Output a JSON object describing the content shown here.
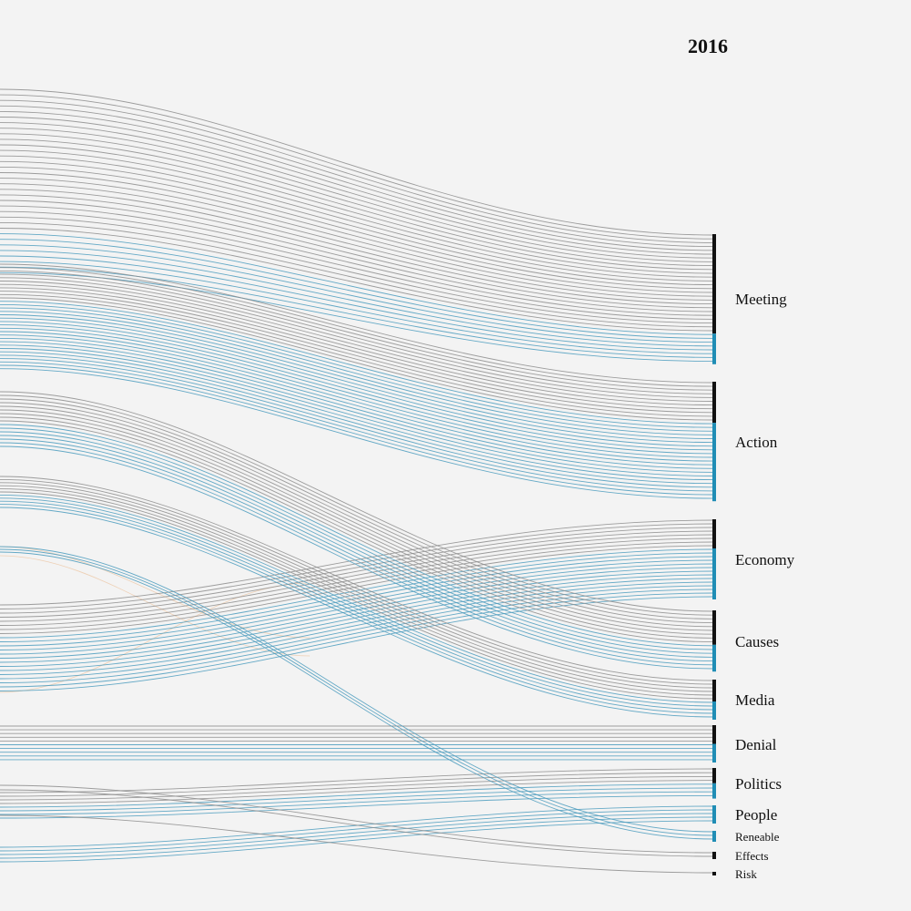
{
  "year": "2016",
  "colors": {
    "background": "#f3f3f3",
    "gray_flow": "#8c8c8c",
    "blue_flow": "#4a9bbd",
    "orange_flow": "#e9a66a",
    "bar_black": "#111111",
    "bar_blue": "#1f8db5"
  },
  "categories": [
    {
      "name": "Meeting",
      "black_lines": 26,
      "blue_lines": 8
    },
    {
      "name": "Action",
      "black_lines": 11,
      "blue_lines": 21
    },
    {
      "name": "Economy",
      "black_lines": 8,
      "blue_lines": 14
    },
    {
      "name": "Causes",
      "black_lines": 9,
      "blue_lines": 7
    },
    {
      "name": "Media",
      "black_lines": 6,
      "blue_lines": 5
    },
    {
      "name": "Denial",
      "black_lines": 5,
      "blue_lines": 5
    },
    {
      "name": "Politics",
      "black_lines": 4,
      "blue_lines": 4
    },
    {
      "name": "People",
      "black_lines": 0,
      "blue_lines": 5
    },
    {
      "name": "Reneable",
      "black_lines": 0,
      "blue_lines": 3
    },
    {
      "name": "Effects",
      "black_lines": 2,
      "blue_lines": 0
    },
    {
      "name": "Risk",
      "black_lines": 1,
      "blue_lines": 0
    }
  ]
}
